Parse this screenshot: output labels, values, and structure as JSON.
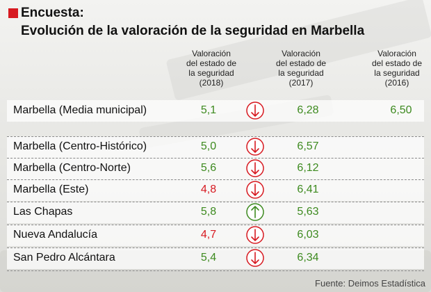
{
  "chart_data": {
    "type": "table",
    "title": "Encuesta:",
    "subtitle": "Evolución de la valoración de la seguridad en Marbella",
    "columns": [
      {
        "key": "v2018",
        "lines": [
          "Valoración",
          "del estado de",
          "la seguridad",
          "(2018)"
        ]
      },
      {
        "key": "v2017",
        "lines": [
          "Valoración",
          "del estado de",
          "la seguridad",
          "(2017)"
        ]
      },
      {
        "key": "v2016",
        "lines": [
          "Valoración",
          "del estado de",
          "la seguridad",
          "(2016)"
        ]
      }
    ],
    "rows": [
      {
        "name": "Marbella (Media municipal)",
        "v2018": "5,1",
        "trend": "down",
        "v2017": "6,28",
        "v2016": "6,50",
        "color_2018": "#3d8a1f"
      },
      {
        "name": "Marbella (Centro-Histórico)",
        "v2018": "5,0",
        "trend": "down",
        "v2017": "6,57",
        "v2016": "",
        "color_2018": "#3d8a1f"
      },
      {
        "name": "Marbella (Centro-Norte)",
        "v2018": "5,6",
        "trend": "down",
        "v2017": "6,12",
        "v2016": "",
        "color_2018": "#3d8a1f"
      },
      {
        "name": "Marbella (Este)",
        "v2018": "4,8",
        "trend": "down",
        "v2017": "6,41",
        "v2016": "",
        "color_2018": "#d71920"
      },
      {
        "name": "Las Chapas",
        "v2018": "5,8",
        "trend": "up",
        "v2017": "5,63",
        "v2016": "",
        "color_2018": "#3d8a1f"
      },
      {
        "name": "Nueva Andalucía",
        "v2018": "4,7",
        "trend": "down",
        "v2017": "6,03",
        "v2016": "",
        "color_2018": "#d71920"
      },
      {
        "name": "San Pedro Alcántara",
        "v2018": "5,4",
        "trend": "down",
        "v2017": "6,34",
        "v2016": "",
        "color_2018": "#3d8a1f"
      }
    ],
    "trend_colors": {
      "down": "#d71920",
      "up": "#3d8a1f"
    }
  },
  "source": "Fuente: Deimos Estadística"
}
